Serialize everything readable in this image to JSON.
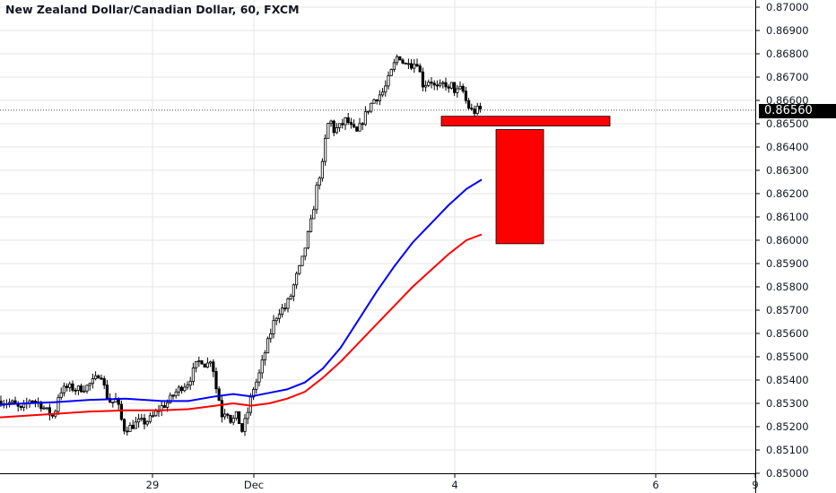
{
  "header": {
    "title": "New Zealand Dollar/Canadian Dollar, 60, FXCM"
  },
  "price_scale": {
    "current_price": "0.86560",
    "tick_labels": [
      "0.87000",
      "0.86900",
      "0.86800",
      "0.86700",
      "0.86600",
      "0.86500",
      "0.86400",
      "0.86300",
      "0.86200",
      "0.86100",
      "0.86000",
      "0.85900",
      "0.85800",
      "0.85700",
      "0.85600",
      "0.85500",
      "0.85400",
      "0.85300",
      "0.85200",
      "0.85100",
      "0.85000"
    ]
  },
  "time_scale": {
    "tick_labels": [
      "29",
      "Dec",
      "4",
      "6",
      "9"
    ]
  },
  "colors": {
    "background": "#ffffff",
    "candle": "#000000",
    "ma_fast": "#0000ff",
    "ma_slow": "#ff0000",
    "zone": "#ff0000",
    "grid": "#e6e6e6"
  },
  "chart_data": {
    "type": "candlestick",
    "title": "New Zealand Dollar/Canadian Dollar, 60, FXCM",
    "ylim": [
      0.85,
      0.8705
    ],
    "x_ticks": [
      "29",
      "Dec",
      "4",
      "6",
      "9"
    ],
    "close_path": [
      [
        0,
        0.8531
      ],
      [
        14,
        0.853
      ],
      [
        24,
        0.8527
      ],
      [
        34,
        0.8532
      ],
      [
        44,
        0.853
      ],
      [
        54,
        0.8526
      ],
      [
        60,
        0.8524
      ],
      [
        66,
        0.8535
      ],
      [
        76,
        0.8537
      ],
      [
        86,
        0.8536
      ],
      [
        96,
        0.8537
      ],
      [
        106,
        0.854
      ],
      [
        112,
        0.8544
      ],
      [
        118,
        0.8534
      ],
      [
        124,
        0.853
      ],
      [
        130,
        0.8532
      ],
      [
        134,
        0.8525
      ],
      [
        138,
        0.8519
      ],
      [
        146,
        0.852
      ],
      [
        154,
        0.8522
      ],
      [
        162,
        0.8522
      ],
      [
        170,
        0.8524
      ],
      [
        178,
        0.8528
      ],
      [
        186,
        0.853
      ],
      [
        194,
        0.8534
      ],
      [
        202,
        0.8537
      ],
      [
        210,
        0.8539
      ],
      [
        218,
        0.8546
      ],
      [
        224,
        0.8549
      ],
      [
        230,
        0.8546
      ],
      [
        236,
        0.855
      ],
      [
        240,
        0.8538
      ],
      [
        244,
        0.8532
      ],
      [
        248,
        0.8524
      ],
      [
        252,
        0.8528
      ],
      [
        258,
        0.8522
      ],
      [
        264,
        0.8525
      ],
      [
        270,
        0.8518
      ],
      [
        276,
        0.8526
      ],
      [
        282,
        0.8536
      ],
      [
        288,
        0.8541
      ],
      [
        294,
        0.855
      ],
      [
        300,
        0.8558
      ],
      [
        306,
        0.8566
      ],
      [
        312,
        0.857
      ],
      [
        318,
        0.8571
      ],
      [
        324,
        0.8576
      ],
      [
        330,
        0.8584
      ],
      [
        336,
        0.859
      ],
      [
        342,
        0.86
      ],
      [
        348,
        0.861
      ],
      [
        354,
        0.8625
      ],
      [
        360,
        0.8633
      ],
      [
        364,
        0.8648
      ],
      [
        368,
        0.8652
      ],
      [
        372,
        0.8647
      ],
      [
        376,
        0.8648
      ],
      [
        380,
        0.8649
      ],
      [
        386,
        0.8652
      ],
      [
        392,
        0.8648
      ],
      [
        398,
        0.8646
      ],
      [
        404,
        0.8651
      ],
      [
        410,
        0.8656
      ],
      [
        416,
        0.866
      ],
      [
        422,
        0.8662
      ],
      [
        428,
        0.8664
      ],
      [
        432,
        0.8668
      ],
      [
        436,
        0.8672
      ],
      [
        440,
        0.8676
      ],
      [
        444,
        0.868
      ],
      [
        448,
        0.8677
      ],
      [
        452,
        0.8675
      ],
      [
        456,
        0.8678
      ],
      [
        460,
        0.8674
      ],
      [
        464,
        0.8678
      ],
      [
        468,
        0.8672
      ],
      [
        472,
        0.8666
      ],
      [
        476,
        0.8668
      ],
      [
        480,
        0.8669
      ],
      [
        484,
        0.8666
      ],
      [
        488,
        0.8665
      ],
      [
        492,
        0.8666
      ],
      [
        496,
        0.8668
      ],
      [
        500,
        0.8664
      ],
      [
        504,
        0.8667
      ],
      [
        508,
        0.8663
      ],
      [
        512,
        0.8665
      ],
      [
        516,
        0.8664
      ],
      [
        520,
        0.8659
      ],
      [
        524,
        0.8656
      ],
      [
        528,
        0.8655
      ],
      [
        532,
        0.8656
      ],
      [
        536,
        0.8656
      ]
    ],
    "series": [
      {
        "values": [
          [
            0,
            0.85295
          ],
          [
            60,
            0.85305
          ],
          [
            100,
            0.85315
          ],
          [
            140,
            0.8532
          ],
          [
            180,
            0.8531
          ],
          [
            210,
            0.8531
          ],
          [
            240,
            0.8533
          ],
          [
            260,
            0.8534
          ],
          [
            280,
            0.8533
          ],
          [
            300,
            0.85345
          ],
          [
            320,
            0.8536
          ],
          [
            340,
            0.8539
          ],
          [
            360,
            0.8545
          ],
          [
            380,
            0.8554
          ],
          [
            400,
            0.8566
          ],
          [
            420,
            0.8578
          ],
          [
            440,
            0.8589
          ],
          [
            460,
            0.8599
          ],
          [
            480,
            0.8607
          ],
          [
            500,
            0.8615
          ],
          [
            520,
            0.8622
          ],
          [
            537,
            0.8626
          ]
        ]
      },
      {
        "values": [
          [
            0,
            0.8524
          ],
          [
            60,
            0.85255
          ],
          [
            100,
            0.85265
          ],
          [
            140,
            0.8527
          ],
          [
            180,
            0.8527
          ],
          [
            210,
            0.85275
          ],
          [
            240,
            0.8529
          ],
          [
            260,
            0.853
          ],
          [
            280,
            0.8529
          ],
          [
            300,
            0.853
          ],
          [
            320,
            0.8532
          ],
          [
            340,
            0.8535
          ],
          [
            360,
            0.8541
          ],
          [
            380,
            0.8548
          ],
          [
            400,
            0.8556
          ],
          [
            420,
            0.8564
          ],
          [
            440,
            0.8572
          ],
          [
            460,
            0.858
          ],
          [
            480,
            0.8587
          ],
          [
            500,
            0.8594
          ],
          [
            520,
            0.86
          ],
          [
            537,
            0.86025
          ]
        ]
      }
    ],
    "zones": [
      {
        "y0": 0.86532,
        "y1": 0.8649,
        "x0": 492,
        "x1": 680
      },
      {
        "y0": 0.86475,
        "y1": 0.85985,
        "x0": 553,
        "x1": 606
      }
    ]
  }
}
